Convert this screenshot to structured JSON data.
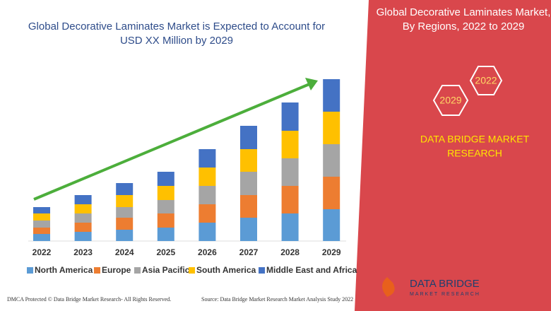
{
  "header": {
    "title_lines": [
      "Global Decorative Laminates Market is Expected to Account for",
      "USD XX Million by 2029"
    ]
  },
  "panel": {
    "title_lines": [
      "Global Decorative Laminates Market,",
      "By Regions, 2022 to 2029"
    ],
    "badges": [
      "2022",
      "2029"
    ],
    "brand_lines": [
      "DATA BRIDGE MARKET",
      "RESEARCH"
    ]
  },
  "logo": {
    "name": "DATA BRIDGE",
    "tagline": "MARKET RESEARCH"
  },
  "footer": {
    "left": "DMCA Protected © Data Bridge Market Research- All Rights Reserved.",
    "right": "Source: Data Bridge Market Research Market Analysis Study 2022"
  },
  "chart_data": {
    "type": "stacked-bar",
    "categories": [
      "2022",
      "2023",
      "2024",
      "2025",
      "2026",
      "2027",
      "2028",
      "2029"
    ],
    "series": [
      {
        "name": "North America",
        "color": "#5b9bd5",
        "values": [
          10,
          13,
          16,
          19,
          26,
          33,
          39,
          45
        ]
      },
      {
        "name": "Europe",
        "color": "#ed7d31",
        "values": [
          9,
          13,
          17,
          20,
          26,
          32,
          39,
          46
        ]
      },
      {
        "name": "Asia Pacific",
        "color": "#a5a5a5",
        "values": [
          10,
          13,
          15,
          19,
          26,
          33,
          39,
          46
        ]
      },
      {
        "name": "South America",
        "color": "#ffc000",
        "values": [
          10,
          13,
          17,
          20,
          26,
          32,
          39,
          46
        ]
      },
      {
        "name": "Middle East and Africa",
        "color": "#4472c4",
        "values": [
          9,
          13,
          17,
          20,
          26,
          33,
          40,
          46
        ]
      }
    ]
  }
}
